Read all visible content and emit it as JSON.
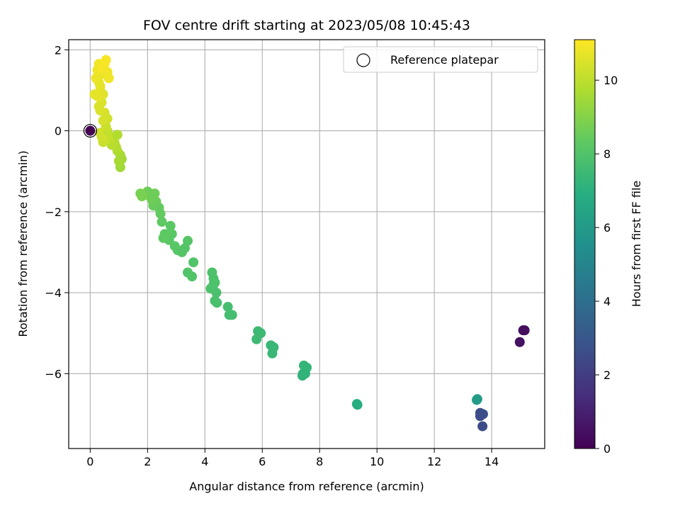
{
  "chart_data": {
    "type": "scatter",
    "title": "FOV centre drift starting at 2023/05/08 10:45:43",
    "xlabel": "Angular distance from reference (arcmin)",
    "ylabel": "Rotation from reference (arcmin)",
    "xlim": [
      -0.75,
      15.85
    ],
    "ylim": [
      -7.85,
      2.25
    ],
    "xticks": [
      0,
      2,
      4,
      6,
      8,
      10,
      12,
      14
    ],
    "yticks": [
      -6,
      -4,
      -2,
      0,
      2
    ],
    "xtick_labels": [
      "0",
      "2",
      "4",
      "6",
      "8",
      "10",
      "12",
      "14"
    ],
    "ytick_labels": [
      "−6",
      "−4",
      "−2",
      "0",
      "2"
    ],
    "grid": true,
    "legend": {
      "placement": "top-right",
      "entries": [
        {
          "label": "Reference platepar",
          "marker": "hollow-circle"
        }
      ]
    },
    "reference_point": {
      "x": 0,
      "y": 0,
      "c": 0
    },
    "colorbar": {
      "label": "Hours from first FF file",
      "range": [
        0,
        11.1
      ],
      "ticks": [
        0,
        2,
        4,
        6,
        8,
        10
      ],
      "tick_labels": [
        "0",
        "2",
        "4",
        "6",
        "8",
        "10"
      ],
      "colormap": "viridis"
    },
    "series": [
      {
        "points": [
          [
            0.0,
            0.0,
            0.0
          ],
          [
            15.1,
            -4.93,
            0.4
          ],
          [
            15.15,
            -4.93,
            0.4
          ],
          [
            14.98,
            -5.22,
            0.5
          ],
          [
            13.68,
            -7.3,
            2.5
          ],
          [
            13.6,
            -6.97,
            2.6
          ],
          [
            13.7,
            -7.0,
            2.7
          ],
          [
            13.6,
            -7.05,
            2.6
          ],
          [
            13.5,
            -6.63,
            6.1
          ],
          [
            13.48,
            -6.65,
            6.1
          ],
          [
            9.3,
            -6.75,
            6.9
          ],
          [
            9.32,
            -6.77,
            6.9
          ],
          [
            7.42,
            -6.0,
            7.2
          ],
          [
            7.5,
            -5.9,
            7.3
          ],
          [
            7.45,
            -5.8,
            7.3
          ],
          [
            7.55,
            -5.85,
            7.3
          ],
          [
            7.4,
            -6.05,
            7.2
          ],
          [
            7.5,
            -6.0,
            7.2
          ],
          [
            6.3,
            -5.3,
            7.4
          ],
          [
            6.4,
            -5.35,
            7.4
          ],
          [
            6.35,
            -5.5,
            7.4
          ],
          [
            5.85,
            -4.95,
            7.5
          ],
          [
            5.95,
            -5.0,
            7.5
          ],
          [
            5.8,
            -5.15,
            7.5
          ],
          [
            4.8,
            -4.35,
            7.7
          ],
          [
            4.85,
            -4.55,
            7.7
          ],
          [
            4.95,
            -4.55,
            7.7
          ],
          [
            4.4,
            -4.0,
            7.8
          ],
          [
            4.35,
            -4.2,
            7.8
          ],
          [
            4.42,
            -4.25,
            7.8
          ],
          [
            4.3,
            -3.8,
            7.8
          ],
          [
            4.25,
            -3.5,
            7.9
          ],
          [
            4.3,
            -3.65,
            7.9
          ],
          [
            4.2,
            -3.9,
            7.9
          ],
          [
            4.35,
            -3.75,
            7.9
          ],
          [
            3.6,
            -3.25,
            8.0
          ],
          [
            3.55,
            -3.6,
            8.0
          ],
          [
            3.4,
            -3.5,
            8.0
          ],
          [
            3.4,
            -2.72,
            8.1
          ],
          [
            3.3,
            -2.9,
            8.1
          ],
          [
            3.2,
            -3.0,
            8.1
          ],
          [
            3.05,
            -2.95,
            8.1
          ],
          [
            2.95,
            -2.85,
            8.2
          ],
          [
            2.85,
            -2.55,
            8.2
          ],
          [
            2.75,
            -2.7,
            8.2
          ],
          [
            2.8,
            -2.35,
            8.2
          ],
          [
            2.6,
            -2.55,
            8.3
          ],
          [
            2.55,
            -2.65,
            8.3
          ],
          [
            2.5,
            -2.25,
            8.3
          ],
          [
            2.45,
            -2.05,
            8.4
          ],
          [
            2.4,
            -1.9,
            8.4
          ],
          [
            2.3,
            -1.75,
            8.5
          ],
          [
            2.2,
            -1.85,
            8.5
          ],
          [
            2.2,
            -1.6,
            8.5
          ],
          [
            2.15,
            -1.7,
            8.6
          ],
          [
            2.05,
            -1.6,
            8.6
          ],
          [
            2.0,
            -1.5,
            8.6
          ],
          [
            2.25,
            -1.55,
            8.6
          ],
          [
            1.85,
            -1.6,
            8.7
          ],
          [
            1.75,
            -1.55,
            8.8
          ],
          [
            1.8,
            -1.62,
            8.8
          ],
          [
            1.05,
            -0.9,
            9.5
          ],
          [
            1.1,
            -0.7,
            9.5
          ],
          [
            1.05,
            -0.6,
            9.6
          ],
          [
            1.0,
            -0.75,
            9.6
          ],
          [
            0.95,
            -0.5,
            9.7
          ],
          [
            0.9,
            -0.4,
            9.8
          ],
          [
            0.85,
            -0.3,
            9.8
          ],
          [
            0.8,
            -0.25,
            9.9
          ],
          [
            0.75,
            -0.35,
            9.9
          ],
          [
            0.7,
            -0.2,
            10.0
          ],
          [
            0.65,
            -0.1,
            10.0
          ],
          [
            0.6,
            -0.15,
            10.1
          ],
          [
            0.55,
            -0.05,
            10.1
          ],
          [
            0.5,
            -0.25,
            10.2
          ],
          [
            0.45,
            -0.28,
            10.2
          ],
          [
            0.4,
            -0.15,
            10.3
          ],
          [
            0.35,
            -0.05,
            10.3
          ],
          [
            0.95,
            -0.1,
            9.8
          ],
          [
            0.6,
            0.0,
            10.1
          ],
          [
            0.55,
            0.1,
            10.2
          ],
          [
            0.6,
            0.3,
            10.3
          ],
          [
            0.45,
            0.25,
            10.4
          ],
          [
            0.5,
            0.45,
            10.4
          ],
          [
            0.35,
            0.5,
            10.5
          ],
          [
            0.3,
            0.6,
            10.5
          ],
          [
            0.4,
            0.7,
            10.5
          ],
          [
            0.45,
            0.9,
            10.6
          ],
          [
            0.35,
            1.0,
            10.6
          ],
          [
            0.25,
            0.85,
            10.7
          ],
          [
            0.15,
            0.9,
            10.7
          ],
          [
            0.3,
            1.2,
            10.8
          ],
          [
            0.4,
            1.4,
            10.8
          ],
          [
            0.25,
            1.5,
            10.9
          ],
          [
            0.3,
            1.65,
            10.9
          ],
          [
            0.5,
            1.65,
            11.0
          ],
          [
            0.55,
            1.75,
            11.0
          ],
          [
            0.45,
            1.55,
            11.0
          ],
          [
            0.6,
            1.45,
            10.9
          ],
          [
            0.65,
            1.3,
            10.9
          ],
          [
            0.2,
            1.3,
            10.8
          ],
          [
            0.35,
            1.1,
            10.7
          ]
        ]
      }
    ]
  }
}
